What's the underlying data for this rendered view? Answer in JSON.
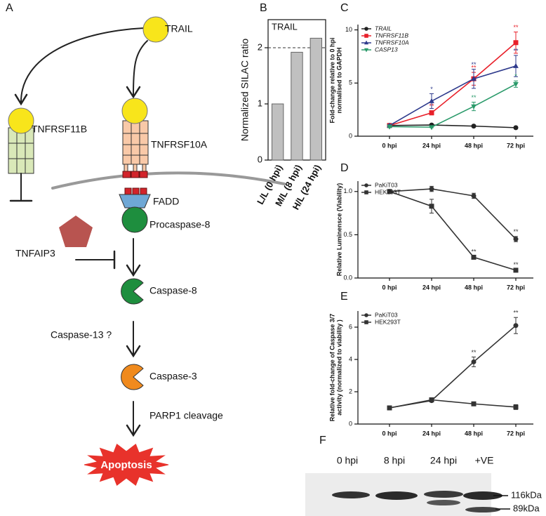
{
  "panel_labels": [
    "A",
    "B",
    "C",
    "D",
    "E",
    "F"
  ],
  "diagram": {
    "ligand": "TRAIL",
    "decoy_receptor": "TNFRSF11B",
    "receptor": "TNFRSF10A",
    "adaptor": "FADD",
    "initiator": "Procaspase-8",
    "inhibitor": "TNFAIP3",
    "active_initiator": "Caspase-8",
    "intermediate": "Caspase-13 ?",
    "executioner": "Caspase-3",
    "substrate": "PARP1 cleavage",
    "outcome": "Apoptosis"
  },
  "chart_data": [
    {
      "type": "bar",
      "title": "TRAIL",
      "ylabel": "Normalized SILAC ratio",
      "categories": [
        "L/L (0 hpi)",
        "M/L (8 hpi)",
        "H/L (24 hpi)"
      ],
      "values": [
        1.0,
        1.92,
        2.17
      ],
      "color": "#c0c0c0",
      "ylim": [
        0,
        2.5
      ],
      "yticks": [
        0,
        1,
        2
      ],
      "hline": 2
    },
    {
      "type": "line",
      "ylabel": [
        "Fold-change relative to 0 hpi",
        "normalised to GAPDH"
      ],
      "categories": [
        "0 hpi",
        "24 hpi",
        "48 hpi",
        "72 hpi"
      ],
      "ylim": [
        0,
        10.5
      ],
      "yticks": [
        0,
        5,
        10
      ],
      "series": [
        {
          "name": "TRAIL",
          "color": "#222222",
          "marker": "circle",
          "values": [
            1.0,
            1.05,
            0.95,
            0.8
          ],
          "errors": [
            0.2,
            0.1,
            0.05,
            0.1
          ],
          "significance": [
            null,
            null,
            null,
            null
          ]
        },
        {
          "name": "TNFRSF11B",
          "color": "#e8202a",
          "marker": "square",
          "values": [
            1.0,
            2.2,
            5.4,
            8.8
          ],
          "errors": [
            0.1,
            0.2,
            0.6,
            1.0
          ],
          "significance": [
            null,
            "**",
            "**",
            "**"
          ]
        },
        {
          "name": "TNFRSF10A",
          "color": "#2e3a8c",
          "marker": "triangle",
          "values": [
            1.0,
            3.3,
            5.4,
            6.6
          ],
          "errors": [
            0.1,
            0.7,
            0.9,
            1.0
          ],
          "significance": [
            null,
            "*",
            "**",
            "**"
          ]
        },
        {
          "name": "CASP13",
          "color": "#2a9a6a",
          "marker": "triangle-down",
          "values": [
            0.9,
            0.85,
            2.8,
            4.9
          ],
          "errors": [
            0.1,
            0.05,
            0.4,
            0.3
          ],
          "significance": [
            null,
            null,
            "**",
            "*"
          ]
        }
      ]
    },
    {
      "type": "line",
      "ylabel": [
        "Relative Luminensce (Viability)"
      ],
      "categories": [
        "0 hpi",
        "24 hpi",
        "48 hpi",
        "72 hpi"
      ],
      "ylim": [
        0,
        1.12
      ],
      "yticks": [
        {
          "value": 0,
          "label": "0.0"
        },
        {
          "value": 0.5,
          "label": "0.5"
        },
        {
          "value": 1,
          "label": "1.0"
        }
      ],
      "series": [
        {
          "name": "PaKiT03",
          "color": "#333333",
          "marker": "circle",
          "values": [
            1.0,
            1.03,
            0.95,
            0.45
          ],
          "errors": [
            0.01,
            0.03,
            0.03,
            0.03
          ],
          "significance": [
            null,
            null,
            null,
            "**"
          ]
        },
        {
          "name": "HEK293T",
          "color": "#333333",
          "marker": "square",
          "values": [
            1.0,
            0.83,
            0.24,
            0.09
          ],
          "errors": [
            0.01,
            0.08,
            0.01,
            0.01
          ],
          "significance": [
            null,
            null,
            "**",
            "**"
          ]
        }
      ]
    },
    {
      "type": "line",
      "ylabel": [
        "Relative fold-change of Caspase 3/7",
        "activity (normalized to viability )"
      ],
      "categories": [
        "0 hpi",
        "24 hpi",
        "48 hpi",
        "72 hpi"
      ],
      "ylim": [
        0,
        7
      ],
      "yticks": [
        0,
        2,
        4,
        6
      ],
      "series": [
        {
          "name": "PaKiT03",
          "color": "#333333",
          "marker": "circle",
          "values": [
            1.0,
            1.45,
            3.85,
            6.1
          ],
          "errors": [
            0.05,
            0.08,
            0.3,
            0.5
          ],
          "significance": [
            null,
            null,
            "**",
            "**"
          ]
        },
        {
          "name": "HEK293T",
          "color": "#333333",
          "marker": "square",
          "values": [
            1.0,
            1.5,
            1.25,
            1.05
          ],
          "errors": [
            0.05,
            0.1,
            0.05,
            0.15
          ],
          "significance": [
            null,
            null,
            null,
            null
          ]
        }
      ]
    }
  ],
  "blot": {
    "lanes": [
      "0 hpi",
      "8 hpi",
      "24 hpi",
      "+VE"
    ],
    "markers": [
      "116kDa",
      "89kDa"
    ]
  }
}
